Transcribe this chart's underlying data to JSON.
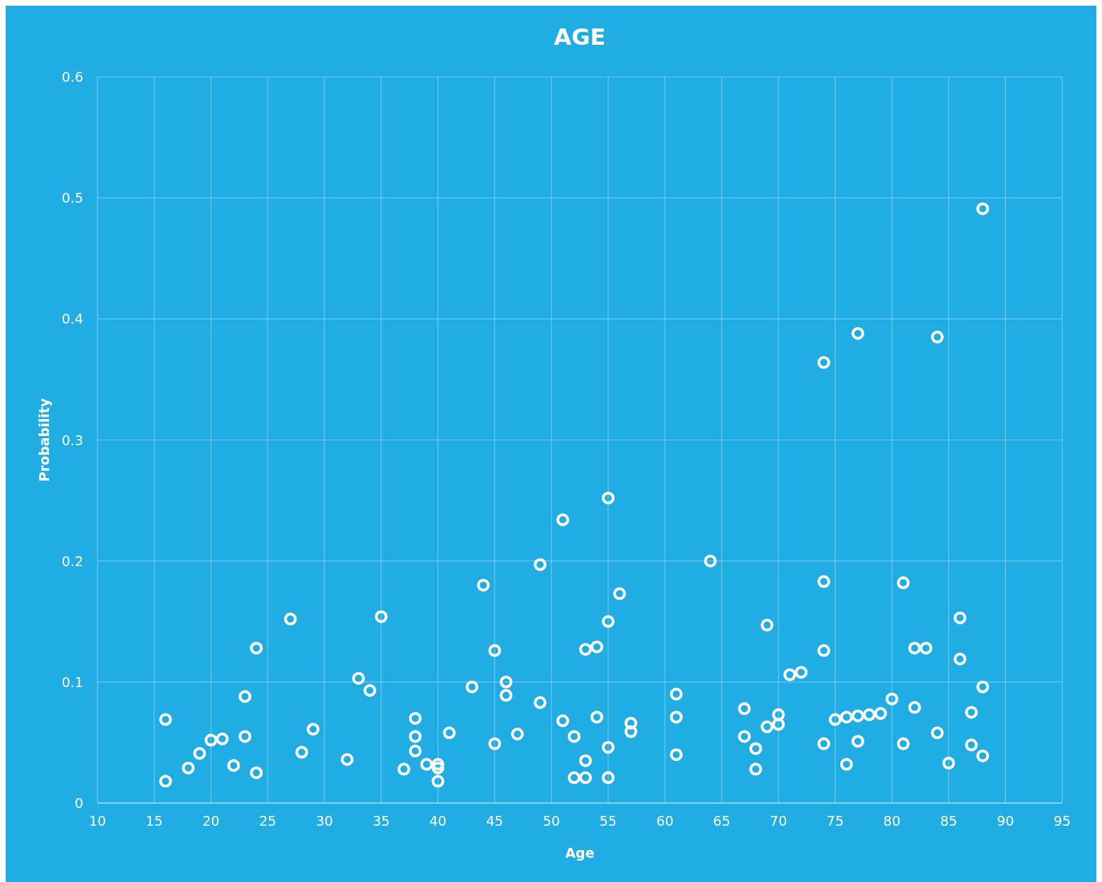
{
  "chart_data": {
    "type": "scatter",
    "title": "AGE",
    "xlabel": "Age",
    "ylabel": "Probability",
    "x": [
      16,
      16,
      18,
      19,
      20,
      21,
      22,
      23,
      23,
      24,
      24,
      27,
      28,
      29,
      32,
      33,
      34,
      35,
      37,
      38,
      38,
      38,
      39,
      40,
      40,
      40,
      41,
      43,
      44,
      45,
      45,
      46,
      46,
      47,
      49,
      49,
      51,
      51,
      52,
      52,
      53,
      53,
      53,
      54,
      54,
      55,
      55,
      55,
      55,
      56,
      57,
      57,
      61,
      61,
      61,
      64,
      67,
      67,
      68,
      68,
      69,
      69,
      70,
      70,
      71,
      72,
      74,
      74,
      74,
      74,
      75,
      76,
      76,
      77,
      77,
      77,
      78,
      79,
      80,
      81,
      81,
      82,
      82,
      83,
      84,
      84,
      85,
      86,
      86,
      87,
      87,
      88,
      88,
      88
    ],
    "values": [
      0.069,
      0.018,
      0.029,
      0.041,
      0.052,
      0.053,
      0.031,
      0.088,
      0.055,
      0.128,
      0.025,
      0.152,
      0.042,
      0.061,
      0.036,
      0.103,
      0.093,
      0.154,
      0.028,
      0.07,
      0.055,
      0.043,
      0.032,
      0.032,
      0.029,
      0.018,
      0.058,
      0.096,
      0.18,
      0.126,
      0.049,
      0.1,
      0.089,
      0.057,
      0.197,
      0.083,
      0.234,
      0.068,
      0.055,
      0.021,
      0.127,
      0.035,
      0.021,
      0.129,
      0.071,
      0.252,
      0.15,
      0.046,
      0.021,
      0.173,
      0.066,
      0.059,
      0.09,
      0.071,
      0.04,
      0.2,
      0.078,
      0.055,
      0.045,
      0.028,
      0.147,
      0.063,
      0.073,
      0.065,
      0.106,
      0.108,
      0.364,
      0.183,
      0.126,
      0.049,
      0.069,
      0.071,
      0.032,
      0.388,
      0.072,
      0.051,
      0.073,
      0.074,
      0.086,
      0.182,
      0.049,
      0.128,
      0.079,
      0.128,
      0.385,
      0.058,
      0.033,
      0.153,
      0.119,
      0.075,
      0.048,
      0.491,
      0.096,
      0.039
    ],
    "color": "#ffffff",
    "marker": "circle",
    "grid": true,
    "xlim": [
      10,
      95
    ],
    "xticks": [
      10,
      15,
      20,
      25,
      30,
      35,
      40,
      45,
      50,
      55,
      60,
      65,
      70,
      75,
      80,
      85,
      90,
      95
    ],
    "ylim": [
      0,
      0.6
    ],
    "yticks": [
      0,
      0.1,
      0.2,
      0.3,
      0.4,
      0.5,
      0.6
    ]
  }
}
